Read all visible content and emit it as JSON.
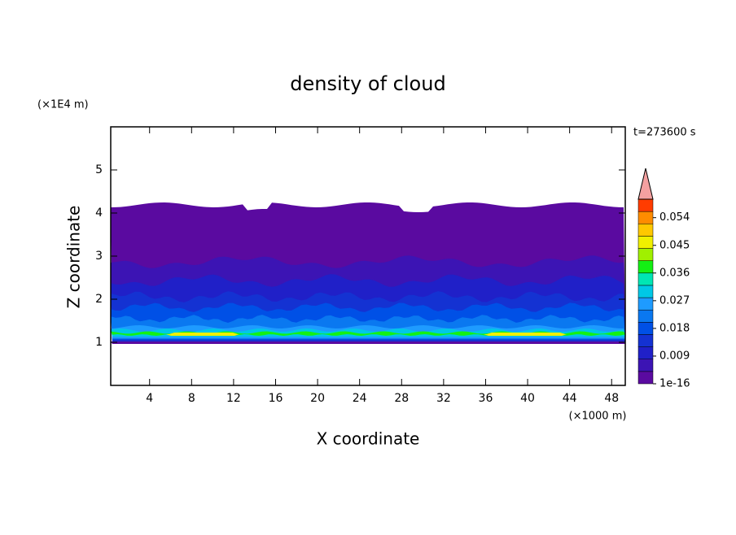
{
  "chart_data": {
    "type": "contour",
    "title": "density of cloud",
    "x_label": "X coordinate",
    "y_label": "Z coordinate",
    "x_unit": "(×1000 m)",
    "y_unit": "(×1E4 m)",
    "time_label": "t=273600 s",
    "xlim": [
      0.3,
      49.3
    ],
    "ylim": [
      0,
      6
    ],
    "xticks": [
      4,
      8,
      12,
      16,
      20,
      24,
      28,
      32,
      36,
      40,
      44,
      48
    ],
    "yticks": [
      1,
      2,
      3,
      4,
      5
    ],
    "clim": [
      1e-16,
      0.06
    ],
    "colorbar_ticks": [
      1e-16,
      0.009,
      0.018,
      0.027,
      0.036,
      0.045,
      0.054
    ],
    "colors": [
      "#5a0aa0",
      "#3c14b4",
      "#2020c8",
      "#1432d2",
      "#0050e6",
      "#0a78f0",
      "#1e9bff",
      "#00c8e6",
      "#00e6b4",
      "#14f014",
      "#a0f000",
      "#f0f000",
      "#ffc800",
      "#ff8c00",
      "#ff3c00"
    ],
    "extend_color": "#f4a0a0"
  }
}
